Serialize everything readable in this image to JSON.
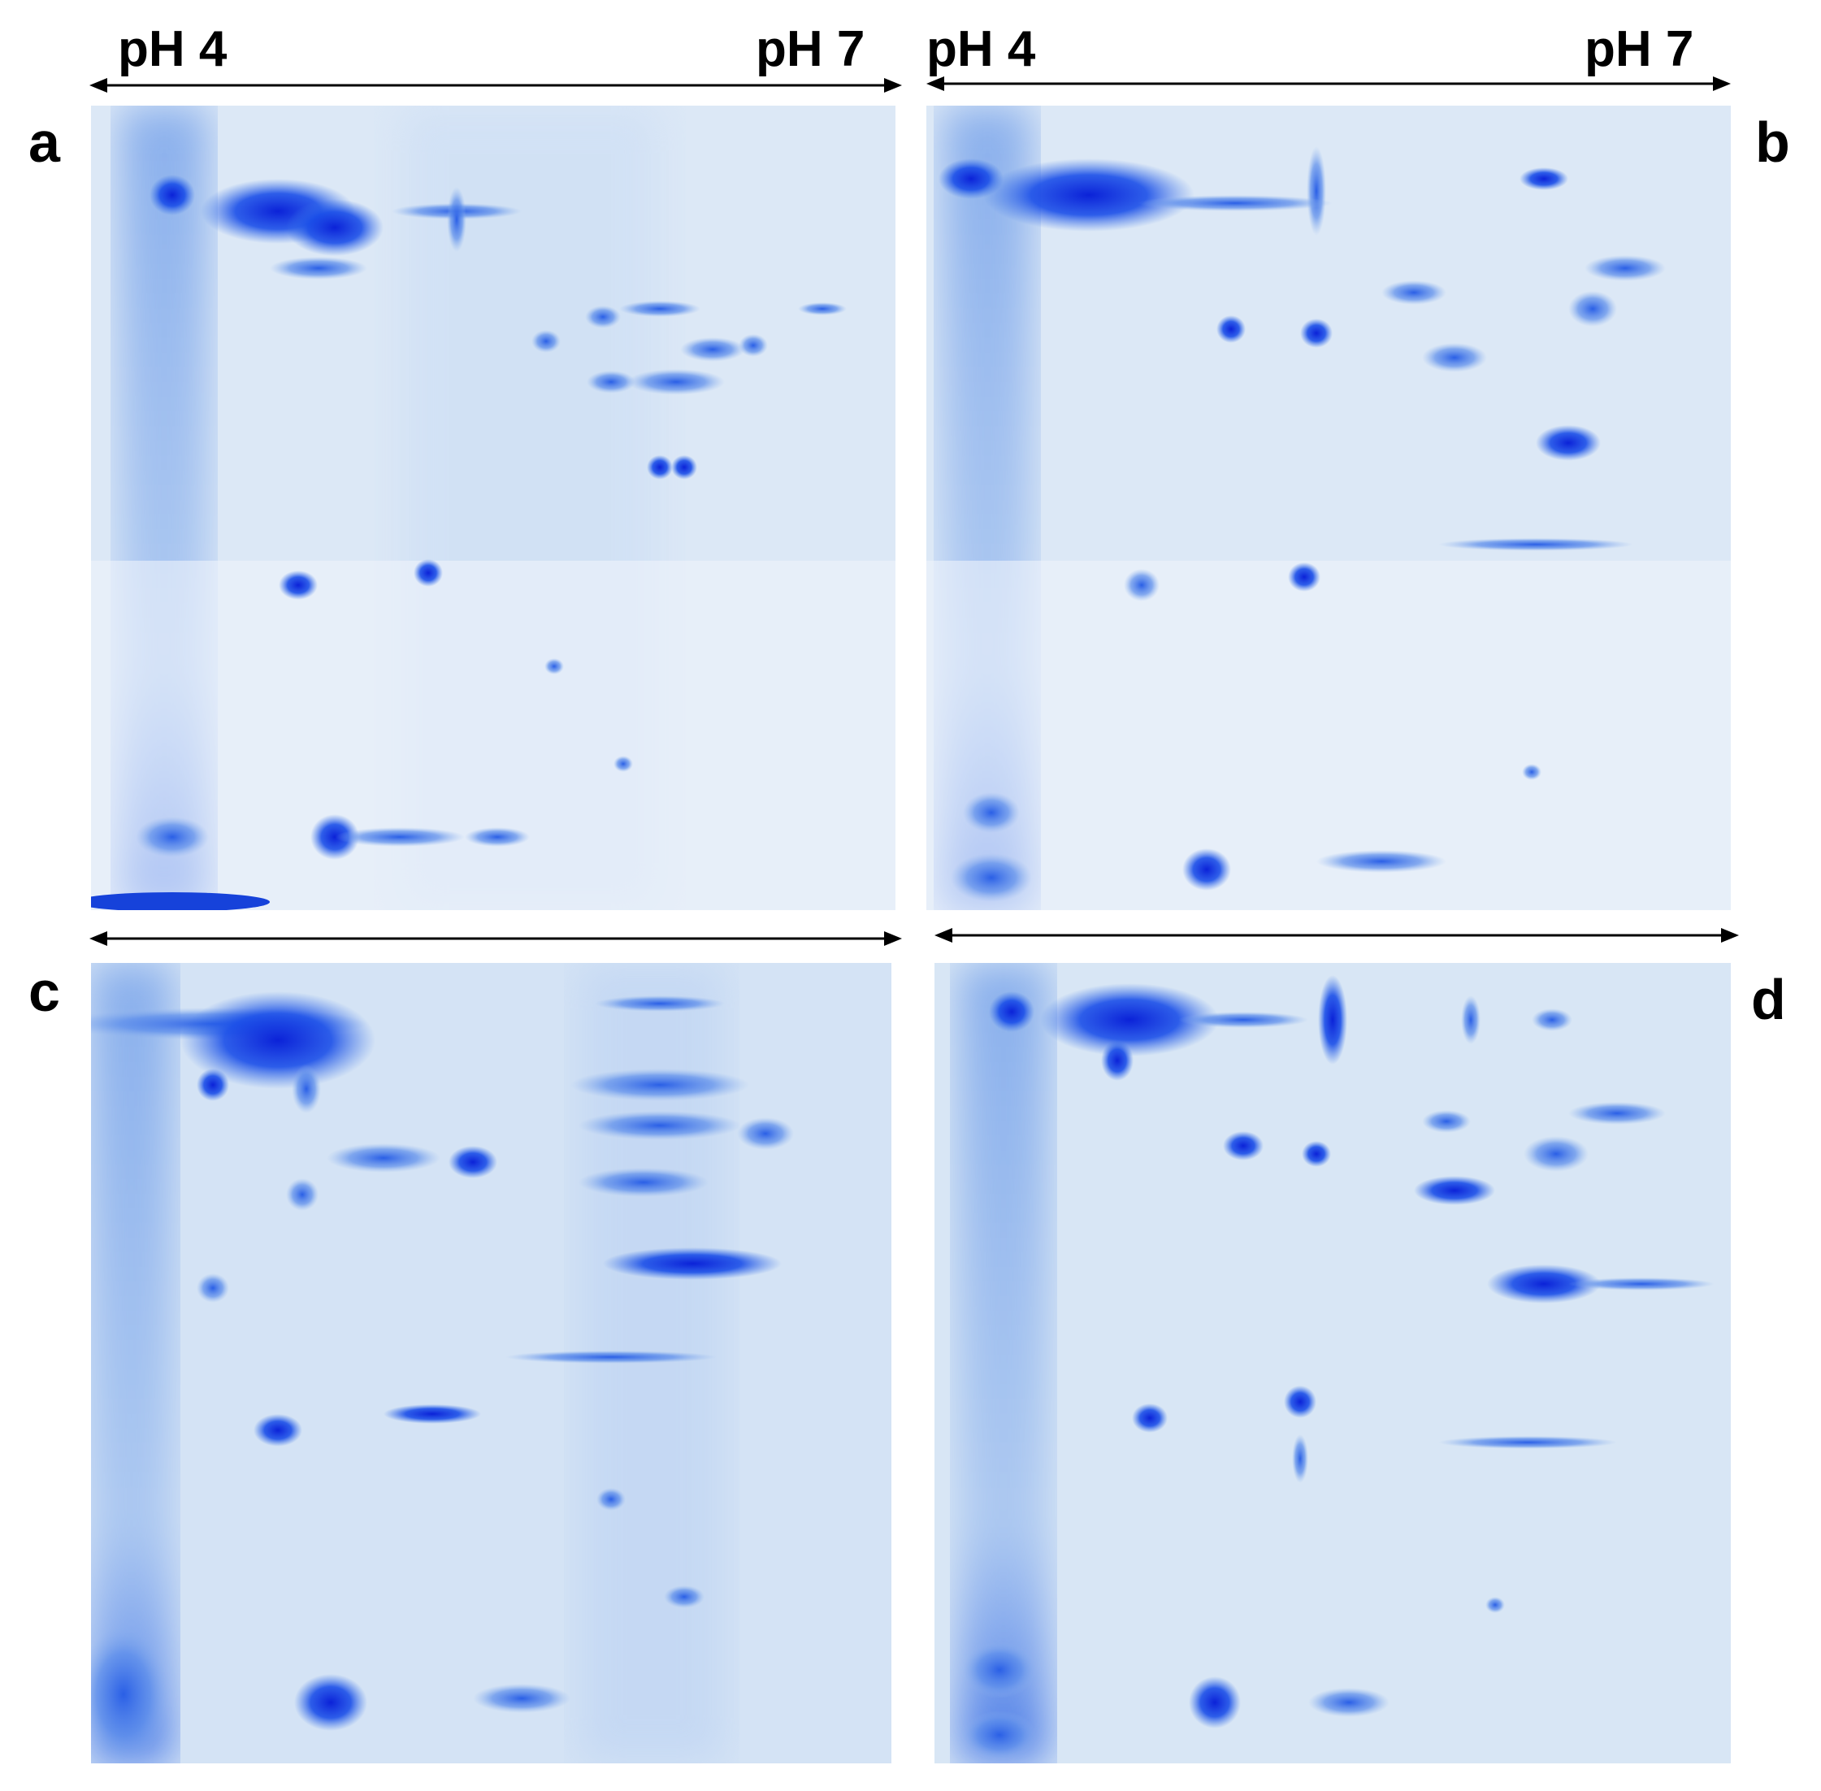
{
  "figure": {
    "ph_left": "pH 4",
    "ph_right": "pH 7",
    "panels": [
      {
        "letter": "a"
      },
      {
        "letter": "b"
      },
      {
        "letter": "c"
      },
      {
        "letter": "d"
      }
    ]
  },
  "colors": {
    "background": "#ffffff",
    "gel_base": "#dde9f6",
    "stain_dark": "#0a2ee8",
    "stain_mid": "#2f66e6",
    "stain_light": "#8fb4ee",
    "text": "#000000"
  }
}
